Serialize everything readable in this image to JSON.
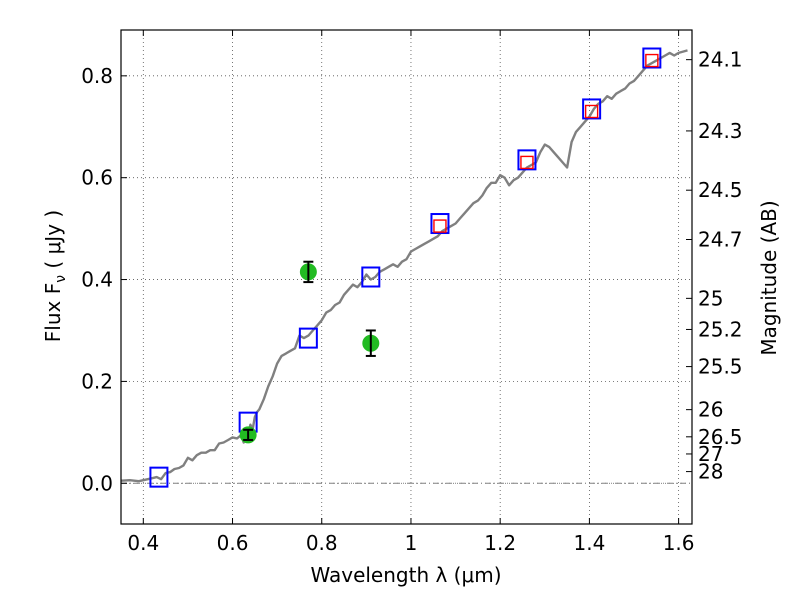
{
  "chart_data": {
    "type": "line",
    "xlabel": "Wavelength  λ (μm)",
    "ylabel": "Flux  F",
    "ylabel_sub": "ν",
    "ylabel_unit": "  ( μJy )",
    "y2label": "Magnitude (AB)",
    "xlim": [
      0.35,
      1.63
    ],
    "ylim": [
      -0.08,
      0.89
    ],
    "grid": true,
    "x_ticks": [
      0.4,
      0.6,
      0.8,
      1.0,
      1.2,
      1.4,
      1.6
    ],
    "x_tick_labels": [
      "0.4",
      "0.6",
      "0.8",
      "1",
      "1.2",
      "1.4",
      "1.6"
    ],
    "y_ticks": [
      0.0,
      0.2,
      0.4,
      0.6,
      0.8
    ],
    "y_tick_labels": [
      "0.0",
      "0.2",
      "0.4",
      "0.6",
      "0.8"
    ],
    "y2_ticks": [
      "24.1",
      "24.3",
      "24.5",
      "24.7",
      "25",
      "25.2",
      "25.5",
      "26",
      "26.5",
      "27",
      "28"
    ],
    "colors": {
      "spectrum": "#808080",
      "model_squares": "#0000ff",
      "observed_squares": "#ff0000",
      "observed_points": "#22bb22",
      "errorbar": "#000000",
      "zero_line": "#808080"
    },
    "series": [
      {
        "kind": "spectrum",
        "x": [
          0.35,
          0.37,
          0.39,
          0.41,
          0.42,
          0.43,
          0.44,
          0.45,
          0.46,
          0.47,
          0.48,
          0.49,
          0.5,
          0.51,
          0.52,
          0.53,
          0.54,
          0.55,
          0.56,
          0.57,
          0.58,
          0.59,
          0.6,
          0.61,
          0.62,
          0.625,
          0.63,
          0.635,
          0.64,
          0.645,
          0.65,
          0.655,
          0.66,
          0.67,
          0.68,
          0.69,
          0.7,
          0.71,
          0.72,
          0.73,
          0.74,
          0.75,
          0.76,
          0.77,
          0.78,
          0.79,
          0.8,
          0.81,
          0.82,
          0.83,
          0.84,
          0.85,
          0.86,
          0.87,
          0.88,
          0.89,
          0.9,
          0.91,
          0.92,
          0.93,
          0.94,
          0.95,
          0.96,
          0.97,
          0.98,
          0.99,
          1.0,
          1.01,
          1.02,
          1.03,
          1.04,
          1.05,
          1.06,
          1.07,
          1.08,
          1.09,
          1.1,
          1.11,
          1.12,
          1.13,
          1.14,
          1.15,
          1.16,
          1.17,
          1.18,
          1.19,
          1.2,
          1.21,
          1.22,
          1.23,
          1.24,
          1.25,
          1.26,
          1.27,
          1.28,
          1.29,
          1.3,
          1.31,
          1.32,
          1.33,
          1.34,
          1.35,
          1.36,
          1.37,
          1.38,
          1.39,
          1.4,
          1.41,
          1.42,
          1.43,
          1.44,
          1.45,
          1.46,
          1.47,
          1.48,
          1.49,
          1.5,
          1.51,
          1.52,
          1.53,
          1.54,
          1.55,
          1.56,
          1.57,
          1.58,
          1.59,
          1.6,
          1.62
        ],
        "y": [
          0.005,
          0.006,
          0.004,
          0.008,
          0.01,
          0.012,
          0.008,
          0.02,
          0.022,
          0.028,
          0.03,
          0.035,
          0.05,
          0.045,
          0.055,
          0.06,
          0.06,
          0.065,
          0.065,
          0.078,
          0.08,
          0.085,
          0.09,
          0.088,
          0.095,
          0.08,
          0.1,
          0.095,
          0.115,
          0.105,
          0.13,
          0.14,
          0.145,
          0.165,
          0.19,
          0.21,
          0.235,
          0.25,
          0.255,
          0.26,
          0.265,
          0.29,
          0.285,
          0.29,
          0.3,
          0.31,
          0.32,
          0.335,
          0.34,
          0.35,
          0.355,
          0.37,
          0.38,
          0.39,
          0.385,
          0.395,
          0.41,
          0.4,
          0.405,
          0.415,
          0.42,
          0.425,
          0.43,
          0.425,
          0.435,
          0.44,
          0.455,
          0.46,
          0.465,
          0.47,
          0.475,
          0.48,
          0.485,
          0.495,
          0.5,
          0.505,
          0.51,
          0.52,
          0.53,
          0.54,
          0.55,
          0.555,
          0.565,
          0.58,
          0.59,
          0.59,
          0.605,
          0.6,
          0.585,
          0.595,
          0.6,
          0.61,
          0.62,
          0.625,
          0.63,
          0.65,
          0.665,
          0.66,
          0.65,
          0.64,
          0.63,
          0.62,
          0.67,
          0.69,
          0.7,
          0.71,
          0.72,
          0.735,
          0.745,
          0.75,
          0.76,
          0.755,
          0.765,
          0.77,
          0.775,
          0.785,
          0.79,
          0.8,
          0.81,
          0.82,
          0.825,
          0.83,
          0.835,
          0.84,
          0.845,
          0.84,
          0.845,
          0.85
        ]
      },
      {
        "kind": "model_squares",
        "x": [
          0.435,
          0.635,
          0.77,
          0.91,
          1.065,
          1.26,
          1.405,
          1.54
        ],
        "y": [
          0.012,
          0.12,
          0.285,
          0.405,
          0.51,
          0.635,
          0.735,
          0.835
        ]
      },
      {
        "kind": "observed_squares",
        "x": [
          1.065,
          1.26,
          1.405,
          1.54
        ],
        "y": [
          0.505,
          0.63,
          0.73,
          0.83
        ]
      },
      {
        "kind": "observed_points",
        "x": [
          0.635,
          0.77,
          0.91
        ],
        "y": [
          0.095,
          0.415,
          0.275
        ],
        "err": [
          0.01,
          0.02,
          0.025
        ]
      }
    ]
  }
}
